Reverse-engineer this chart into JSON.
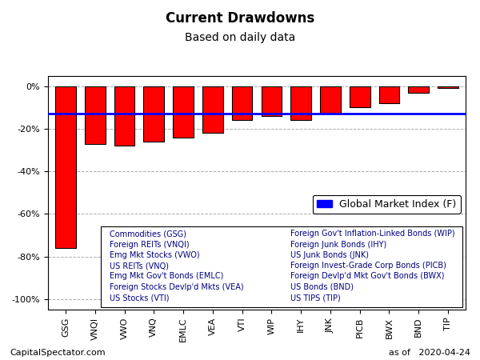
{
  "categories": [
    "GSG",
    "VNQI",
    "VWO",
    "VNQ",
    "EMLC",
    "VEA",
    "VTI",
    "WIP",
    "IHY",
    "JNK",
    "PICB",
    "BWX",
    "BND",
    "TIP"
  ],
  "values": [
    -76,
    -27,
    -28,
    -26,
    -24,
    -22,
    -16,
    -14,
    -16,
    -13,
    -10,
    -8,
    -3,
    -1
  ],
  "bar_color": "#FF0000",
  "bar_edge_color": "#000000",
  "global_market_line": -13,
  "title": "Current Drawdowns",
  "subtitle": "Based on daily data",
  "ylim": [
    -105,
    5
  ],
  "yticks": [
    0,
    -20,
    -40,
    -60,
    -80,
    -100
  ],
  "ytick_labels": [
    "0%",
    "-20%",
    "-40%",
    "-60%",
    "-80%",
    "-100%"
  ],
  "legend_label": "Global Market Index (F)",
  "legend_color": "#0000FF",
  "grid_color": "#AAAAAA",
  "bg_color": "#FFFFFF",
  "footer_left": "CapitalSpectator.com",
  "footer_right": "as of   2020-04-24",
  "title_fontsize": 12,
  "subtitle_fontsize": 10,
  "tick_fontsize": 8,
  "legend_fontsize": 9,
  "footer_fontsize": 8,
  "legend_items_left": [
    "Commodities (GSG)",
    "Foreign REITs (VNQI)",
    "Emg Mkt Stocks (VWO)",
    "US REITs (VNQ)",
    "Emg Mkt Gov't Bonds (EMLC)",
    "Foreign Stocks Devlp'd Mkts (VEA)",
    "US Stocks (VTI)"
  ],
  "legend_items_right": [
    "Foreign Gov't Inflation-Linked Bonds (WIP)",
    "Foreign Junk Bonds (IHY)",
    "US Junk Bonds (JNK)",
    "Foreign Invest-Grade Corp Bonds (PICB)",
    "Foreign Devlp'd Mkt Gov't Bonds (BWX)",
    "US Bonds (BND)",
    "US TIPS (TIP)"
  ]
}
